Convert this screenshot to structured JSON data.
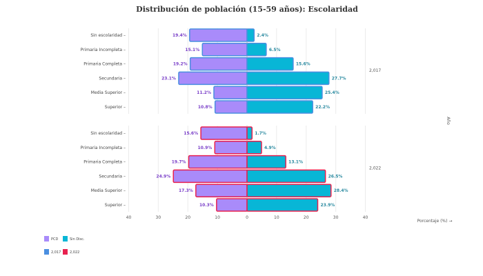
{
  "chart_data": {
    "type": "bar",
    "orientation": "horizontal",
    "layout": "population-pyramid, faceted by year",
    "title": "Distribución de población (15-59 años): Escolaridad",
    "xlabel": "Porcentaje (%) →",
    "facet_label": "Año",
    "xlim": [
      -40,
      40
    ],
    "x_ticks": [
      40,
      30,
      20,
      10,
      0,
      10,
      20,
      30,
      40
    ],
    "grid": true,
    "categories": [
      "Sin escolaridad",
      "Primaria Incompleta",
      "Primaria Completa",
      "Secundaria",
      "Media Superior",
      "Superior"
    ],
    "facets": [
      {
        "name": "2,017",
        "outline_color": "#4a8fe0",
        "series": [
          {
            "name": "PCD",
            "side": "left",
            "color": "#a98bfa",
            "values": [
              19.4,
              15.1,
              19.2,
              23.1,
              11.2,
              10.8
            ],
            "labels": [
              "19.4%",
              "15.1%",
              "19.2%",
              "23.1%",
              "11.2%",
              "10.8%"
            ]
          },
          {
            "name": "Sin Disc.",
            "side": "right",
            "color": "#08b6d6",
            "values": [
              2.4,
              6.5,
              15.6,
              27.7,
              25.4,
              22.2
            ],
            "labels": [
              "2.4%",
              "6.5%",
              "15.6%",
              "27.7%",
              "25.4%",
              "22.2%"
            ]
          }
        ]
      },
      {
        "name": "2,022",
        "outline_color": "#e8214f",
        "series": [
          {
            "name": "PCD",
            "side": "left",
            "color": "#a98bfa",
            "values": [
              15.6,
              10.9,
              19.7,
              24.9,
              17.3,
              10.3
            ],
            "labels": [
              "15.6%",
              "10.9%",
              "19.7%",
              "24.9%",
              "17.3%",
              "10.3%"
            ]
          },
          {
            "name": "Sin Disc.",
            "side": "right",
            "color": "#08b6d6",
            "values": [
              1.7,
              4.9,
              13.1,
              26.5,
              28.4,
              23.9
            ],
            "labels": [
              "1.7%",
              "4.9%",
              "13.1%",
              "26.5%",
              "28.4%",
              "23.9%"
            ]
          }
        ]
      }
    ],
    "legend": {
      "placement": "bottom-left",
      "fill_entries": [
        {
          "label": "PCD",
          "color": "#a98bfa"
        },
        {
          "label": "Sin Disc.",
          "color": "#08b6d6"
        }
      ],
      "outline_entries": [
        {
          "label": "2,017",
          "color": "#4a8fe0"
        },
        {
          "label": "2,022",
          "color": "#e8214f"
        }
      ]
    }
  }
}
